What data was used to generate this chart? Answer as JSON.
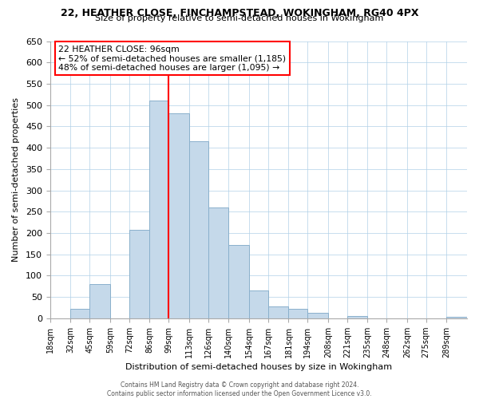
{
  "title1": "22, HEATHER CLOSE, FINCHAMPSTEAD, WOKINGHAM, RG40 4PX",
  "title2": "Size of property relative to semi-detached houses in Wokingham",
  "xlabel": "Distribution of semi-detached houses by size in Wokingham",
  "ylabel": "Number of semi-detached properties",
  "bin_labels": [
    "18sqm",
    "32sqm",
    "45sqm",
    "59sqm",
    "72sqm",
    "86sqm",
    "99sqm",
    "113sqm",
    "126sqm",
    "140sqm",
    "154sqm",
    "167sqm",
    "181sqm",
    "194sqm",
    "208sqm",
    "221sqm",
    "235sqm",
    "248sqm",
    "262sqm",
    "275sqm",
    "289sqm"
  ],
  "bar_heights": [
    0,
    22,
    80,
    0,
    207,
    510,
    480,
    415,
    260,
    172,
    65,
    28,
    22,
    13,
    0,
    5,
    0,
    0,
    0,
    0,
    3
  ],
  "bar_color": "#c5d9ea",
  "bar_edge_color": "#8ab0cc",
  "property_line_x": 99,
  "annotation_line1": "22 HEATHER CLOSE: 96sqm",
  "annotation_line2": "← 52% of semi-detached houses are smaller (1,185)",
  "annotation_line3": "48% of semi-detached houses are larger (1,095) →",
  "ylim": [
    0,
    650
  ],
  "yticks": [
    0,
    50,
    100,
    150,
    200,
    250,
    300,
    350,
    400,
    450,
    500,
    550,
    600,
    650
  ],
  "footer1": "Contains HM Land Registry data © Crown copyright and database right 2024.",
  "footer2": "Contains public sector information licensed under the Open Government Licence v3.0.",
  "bin_edges": [
    18,
    32,
    45,
    59,
    72,
    86,
    99,
    113,
    126,
    140,
    154,
    167,
    181,
    194,
    208,
    221,
    235,
    248,
    262,
    275,
    289,
    303
  ]
}
